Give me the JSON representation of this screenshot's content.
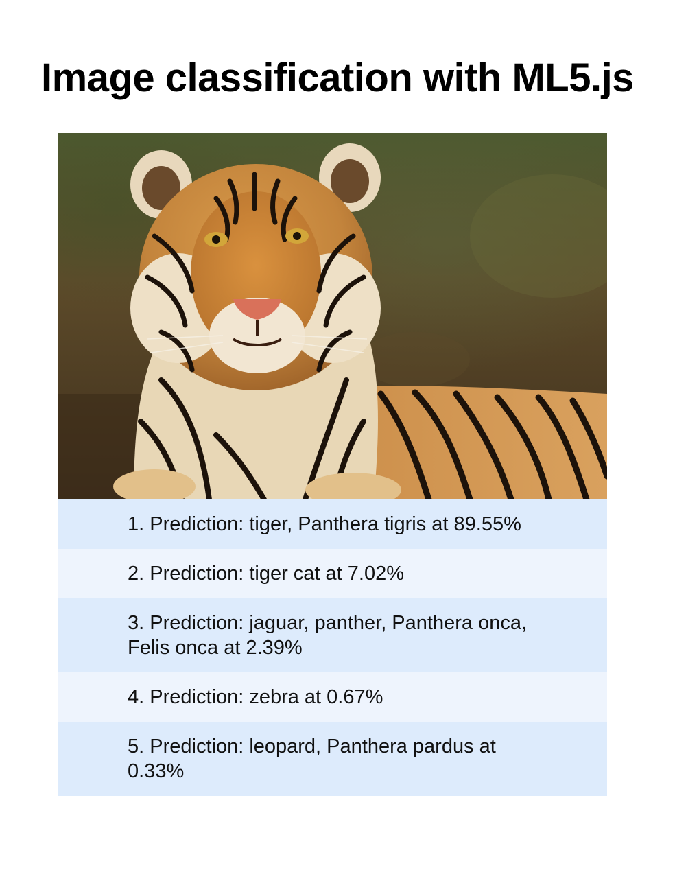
{
  "header": {
    "title": "Image classification with ML5.js"
  },
  "image": {
    "subject": "tiger"
  },
  "predictions": [
    {
      "text": "1. Prediction: tiger, Panthera tigris at 89.55%"
    },
    {
      "text": "2. Prediction: tiger cat at 7.02%"
    },
    {
      "text": "3. Prediction: jaguar, panther, Panthera onca, Felis onca at 2.39%"
    },
    {
      "text": "4. Prediction: zebra at 0.67%"
    },
    {
      "text": "5. Prediction: leopard, Panthera pardus at 0.33%"
    }
  ],
  "colors": {
    "row_odd": "#ddebfc",
    "row_even": "#eef4fd"
  }
}
